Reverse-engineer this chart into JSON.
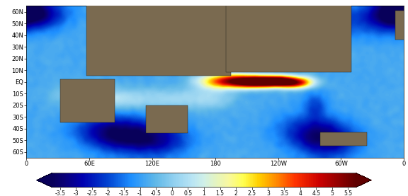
{
  "colorbar_ticks": [
    -3.5,
    -3,
    -2.5,
    -2,
    -1.5,
    -1,
    -0.5,
    0,
    0.5,
    1,
    1.5,
    2,
    2.5,
    3,
    3.5,
    4,
    4.5,
    5,
    5.5
  ],
  "colorbar_ticklabels": [
    "-3.5",
    "-3",
    "-2.5",
    "-2",
    "-1.5",
    "-1",
    "-0.5",
    "0",
    "0.5",
    "1",
    "1.5",
    "2",
    "2.5",
    "3",
    "3.5",
    "4",
    "4.5",
    "5",
    "5.5"
  ],
  "vmin": -3.75,
  "vmax": 5.75,
  "lon_ticks": [
    0,
    60,
    120,
    180,
    240,
    300,
    360
  ],
  "lon_labels": [
    "0",
    "60E",
    "120E",
    "180",
    "120W",
    "60W",
    "0"
  ],
  "lat_ticks": [
    -60,
    -50,
    -40,
    -30,
    -20,
    -10,
    0,
    10,
    20,
    30,
    40,
    50,
    60
  ],
  "lat_labels": [
    "60S",
    "50S",
    "40S",
    "30S",
    "20S",
    "10S",
    "EQ",
    "10N",
    "20N",
    "30N",
    "40N",
    "50N",
    "60N"
  ],
  "land_color": "#7a6a50",
  "land_edge_color": "#1a1a1a",
  "ocean_anomaly_base": -0.8,
  "cmap_colors": [
    [
      0.0,
      "#08005a"
    ],
    [
      0.04,
      "#0a0078"
    ],
    [
      0.1,
      "#0000b0"
    ],
    [
      0.18,
      "#0040d0"
    ],
    [
      0.26,
      "#1e90ff"
    ],
    [
      0.34,
      "#60b8e8"
    ],
    [
      0.4,
      "#90d0f0"
    ],
    [
      0.46,
      "#b8e4f4"
    ],
    [
      0.5,
      "#d0f0e8"
    ],
    [
      0.54,
      "#e4f4c0"
    ],
    [
      0.58,
      "#f8f8a0"
    ],
    [
      0.63,
      "#ffff50"
    ],
    [
      0.68,
      "#ffd000"
    ],
    [
      0.74,
      "#ff8800"
    ],
    [
      0.8,
      "#ff3300"
    ],
    [
      0.88,
      "#cc0000"
    ],
    [
      0.94,
      "#960000"
    ],
    [
      1.0,
      "#600000"
    ]
  ]
}
